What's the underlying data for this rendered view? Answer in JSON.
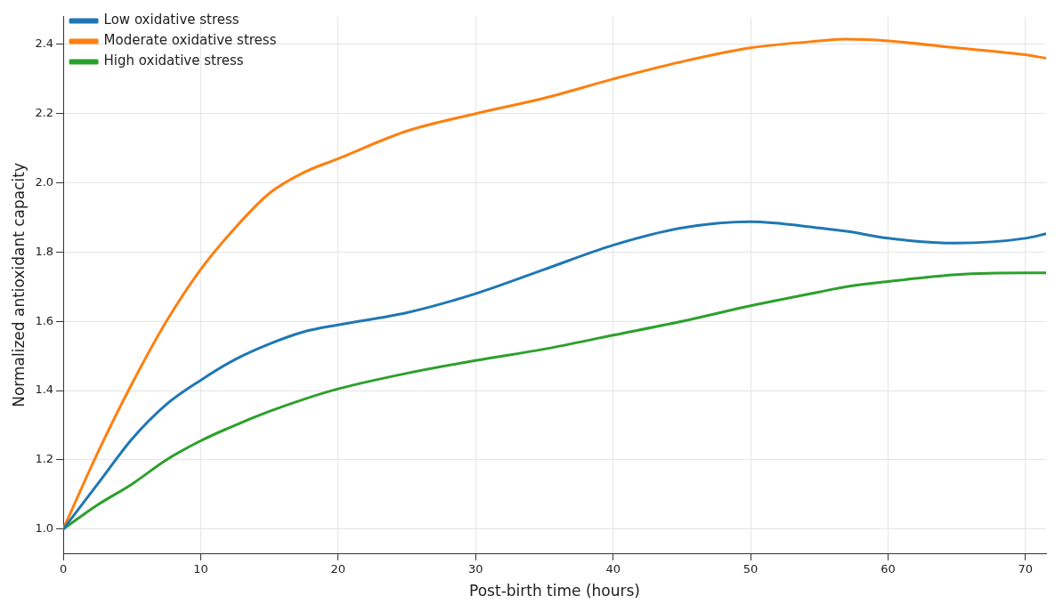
{
  "chart_data": {
    "type": "line",
    "xlabel": "Post-birth time (hours)",
    "ylabel": "Normalized antioxidant capacity",
    "x": [
      0,
      2.5,
      5,
      7.5,
      10,
      12.5,
      15,
      17.5,
      20,
      25,
      30,
      35,
      40,
      45,
      50,
      55,
      57,
      60,
      65,
      70,
      71.5
    ],
    "series": [
      {
        "name": "Low oxidative stress",
        "color": "#1f77b4",
        "values": [
          1.0,
          1.13,
          1.26,
          1.36,
          1.43,
          1.49,
          1.535,
          1.57,
          1.59,
          1.625,
          1.68,
          1.75,
          1.82,
          1.87,
          1.888,
          1.87,
          1.86,
          1.84,
          1.826,
          1.84,
          1.853
        ]
      },
      {
        "name": "Moderate oxidative stress",
        "color": "#ff7f0e",
        "values": [
          1.0,
          1.22,
          1.42,
          1.6,
          1.75,
          1.87,
          1.97,
          2.03,
          2.07,
          2.15,
          2.2,
          2.245,
          2.3,
          2.35,
          2.39,
          2.41,
          2.415,
          2.41,
          2.39,
          2.37,
          2.36
        ]
      },
      {
        "name": "High oxidative stress",
        "color": "#2ca02c",
        "values": [
          1.0,
          1.07,
          1.13,
          1.2,
          1.255,
          1.3,
          1.34,
          1.375,
          1.405,
          1.45,
          1.487,
          1.52,
          1.56,
          1.6,
          1.645,
          1.685,
          1.7,
          1.715,
          1.735,
          1.74,
          1.74
        ]
      }
    ],
    "xlim": [
      0,
      71.5
    ],
    "xticks": [
      0,
      10,
      20,
      30,
      40,
      50,
      60,
      70
    ],
    "ylim": [
      0.93,
      2.48
    ],
    "yticks": [
      {
        "value": 1,
        "label": "1.0"
      },
      1.2,
      1.4,
      1.6,
      1.8,
      {
        "value": 2,
        "label": "2.0"
      },
      2.2,
      2.4
    ],
    "grid": true,
    "legend": "top left",
    "marker": "none",
    "line_style": "solid"
  }
}
